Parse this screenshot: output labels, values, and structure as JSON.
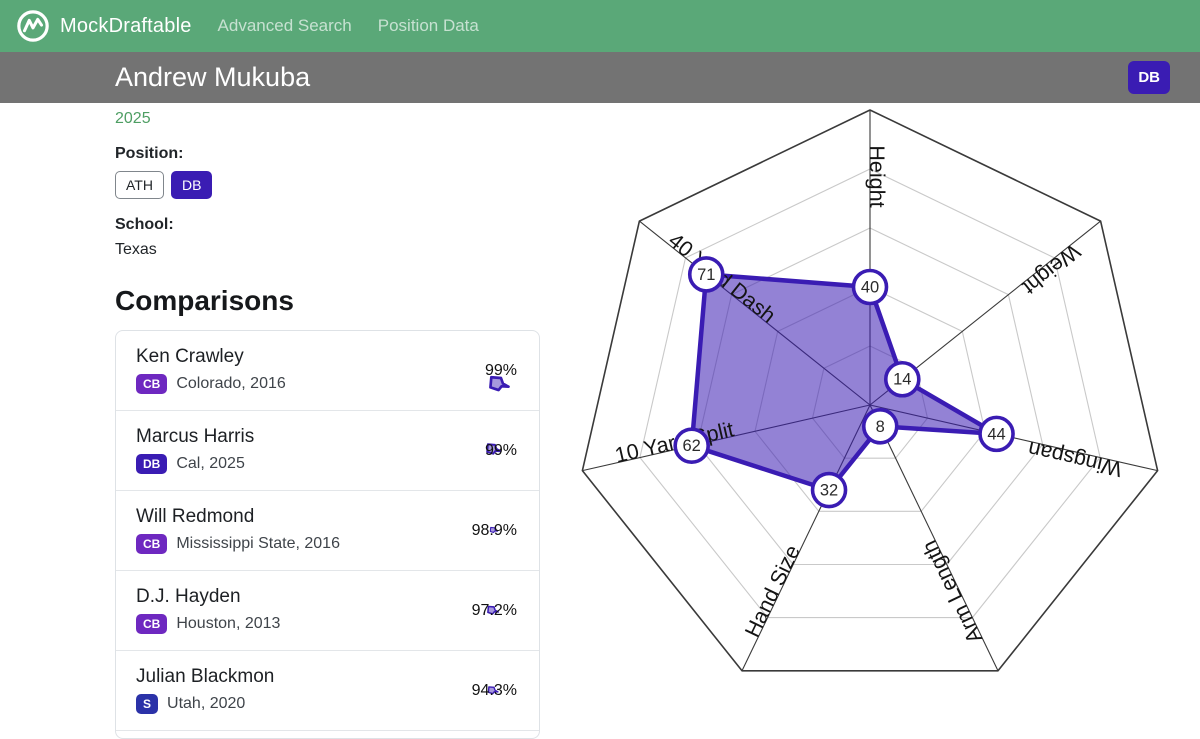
{
  "nav": {
    "brand": "MockDraftable",
    "links": [
      {
        "label": "Advanced Search"
      },
      {
        "label": "Position Data"
      }
    ]
  },
  "header": {
    "title": "Andrew Mukuba",
    "position_badge": "DB"
  },
  "profile": {
    "year": "2025",
    "position_label": "Position:",
    "positions": [
      "ATH",
      "DB"
    ],
    "selected_position": "DB",
    "school_label": "School:",
    "school": "Texas"
  },
  "comparisons": {
    "title": "Comparisons",
    "rows": [
      {
        "name": "Ken Crawley",
        "position": "CB",
        "school_year": "Colorado, 2016",
        "match": "99%"
      },
      {
        "name": "Marcus Harris",
        "position": "DB",
        "school_year": "Cal, 2025",
        "match": "99%"
      },
      {
        "name": "Will Redmond",
        "position": "CB",
        "school_year": "Mississippi State, 2016",
        "match": "98.9%"
      },
      {
        "name": "D.J. Hayden",
        "position": "CB",
        "school_year": "Houston, 2013",
        "match": "97.2%"
      },
      {
        "name": "Julian Blackmon",
        "position": "S",
        "school_year": "Utah, 2020",
        "match": "94.3%"
      }
    ]
  },
  "chart_data": {
    "type": "radar",
    "axes": [
      "Height",
      "Weight",
      "Wingspan",
      "Arm Length",
      "Hand Size",
      "10 Yard Split",
      "40 Yard Dash"
    ],
    "values": [
      40,
      14,
      44,
      8,
      32,
      62,
      71
    ],
    "range": [
      0,
      100
    ],
    "rings": [
      20,
      40,
      60,
      80,
      100
    ],
    "marker_style": "circled-value",
    "legend": "none",
    "title": ""
  },
  "colors": {
    "nav_green": "#5aa878",
    "header_gray": "#737373",
    "link_green": "#4e9e63",
    "accent": "#3a1cb3",
    "radar_fill": "rgba(59,28,179,0.55)",
    "badges": {
      "CB": "#6e28c0",
      "DB": "#3a1cb3",
      "S": "#2b32a8"
    }
  }
}
